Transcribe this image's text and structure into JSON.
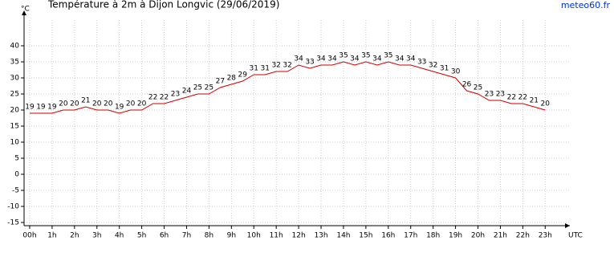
{
  "chart_data": {
    "type": "line",
    "title": "Température à 2m à Dijon Longvic (29/06/2019)",
    "source": "meteo60.fr",
    "y_label": "°C",
    "x_label": "UTC",
    "x": [
      0,
      0.5,
      1,
      1.5,
      2,
      2.5,
      3,
      3.5,
      4,
      4.5,
      5,
      5.5,
      6,
      6.5,
      7,
      7.5,
      8,
      8.5,
      9,
      9.5,
      10,
      10.5,
      11,
      11.5,
      12,
      12.5,
      13,
      13.5,
      14,
      14.5,
      15,
      15.5,
      16,
      16.5,
      17,
      17.5,
      18,
      18.5,
      19,
      19.5,
      20,
      20.5,
      21,
      21.5,
      22,
      22.5,
      23
    ],
    "series": [
      {
        "name": "Température",
        "color": "#cc0000",
        "values": [
          19,
          19,
          19,
          20,
          20,
          21,
          20,
          20,
          19,
          20,
          20,
          22,
          22,
          23,
          24,
          25,
          25,
          27,
          28,
          29,
          31,
          31,
          32,
          32,
          34,
          33,
          34,
          34,
          35,
          34,
          35,
          34,
          35,
          34,
          34,
          33,
          32,
          31,
          30,
          26,
          25,
          23,
          23,
          22,
          22,
          21,
          20
        ]
      }
    ],
    "xlim": [
      -0.25,
      24.1
    ],
    "ylim": [
      -16,
      48
    ],
    "xticks": [
      {
        "value": 0,
        "label": "00h"
      },
      {
        "value": 1,
        "label": "1h"
      },
      {
        "value": 2,
        "label": "2h"
      },
      {
        "value": 3,
        "label": "3h"
      },
      {
        "value": 4,
        "label": "4h"
      },
      {
        "value": 5,
        "label": "5h"
      },
      {
        "value": 6,
        "label": "6h"
      },
      {
        "value": 7,
        "label": "7h"
      },
      {
        "value": 8,
        "label": "8h"
      },
      {
        "value": 9,
        "label": "9h"
      },
      {
        "value": 10,
        "label": "10h"
      },
      {
        "value": 11,
        "label": "11h"
      },
      {
        "value": 12,
        "label": "12h"
      },
      {
        "value": 13,
        "label": "13h"
      },
      {
        "value": 14,
        "label": "14h"
      },
      {
        "value": 15,
        "label": "15h"
      },
      {
        "value": 16,
        "label": "16h"
      },
      {
        "value": 17,
        "label": "17h"
      },
      {
        "value": 18,
        "label": "18h"
      },
      {
        "value": 19,
        "label": "19h"
      },
      {
        "value": 20,
        "label": "20h"
      },
      {
        "value": 21,
        "label": "21h"
      },
      {
        "value": 22,
        "label": "22h"
      },
      {
        "value": 23,
        "label": "23h"
      }
    ],
    "yticks": [
      -15,
      -10,
      -5,
      0,
      5,
      10,
      15,
      20,
      25,
      30,
      35,
      40
    ],
    "grid": true
  }
}
